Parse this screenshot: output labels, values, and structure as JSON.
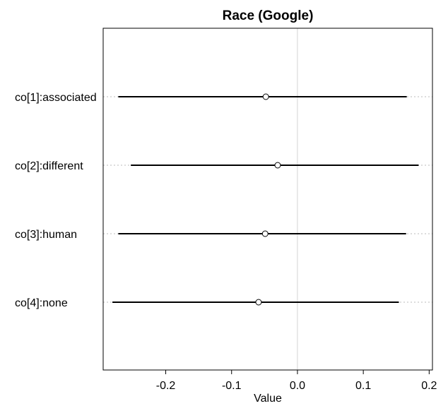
{
  "chart_data": {
    "type": "coefficient-plot",
    "title": "Race (Google)",
    "xlabel": "Value",
    "ylabel": "",
    "xlim": [
      -0.295,
      0.205
    ],
    "xticks": [
      -0.2,
      -0.1,
      0.0,
      0.1,
      0.2
    ],
    "xtick_labels": [
      "-0.2",
      "-0.1",
      "0.0",
      "0.1",
      "0.2"
    ],
    "reference_line": 0.0,
    "grid": "dotted horizontal guide per row",
    "marker": "open-circle",
    "colors": {
      "interval": "#000000",
      "point": "#000000",
      "guide": "#bbbbbb",
      "reference": "#d3d3d3",
      "frame": "#000000"
    },
    "categories": [
      "co[1]:associated",
      "co[2]:different",
      "co[3]:human",
      "co[4]:none"
    ],
    "estimates": [
      -0.048,
      -0.03,
      -0.049,
      -0.059
    ],
    "lower": [
      -0.272,
      -0.253,
      -0.272,
      -0.281
    ],
    "upper": [
      0.166,
      0.184,
      0.165,
      0.154
    ]
  }
}
